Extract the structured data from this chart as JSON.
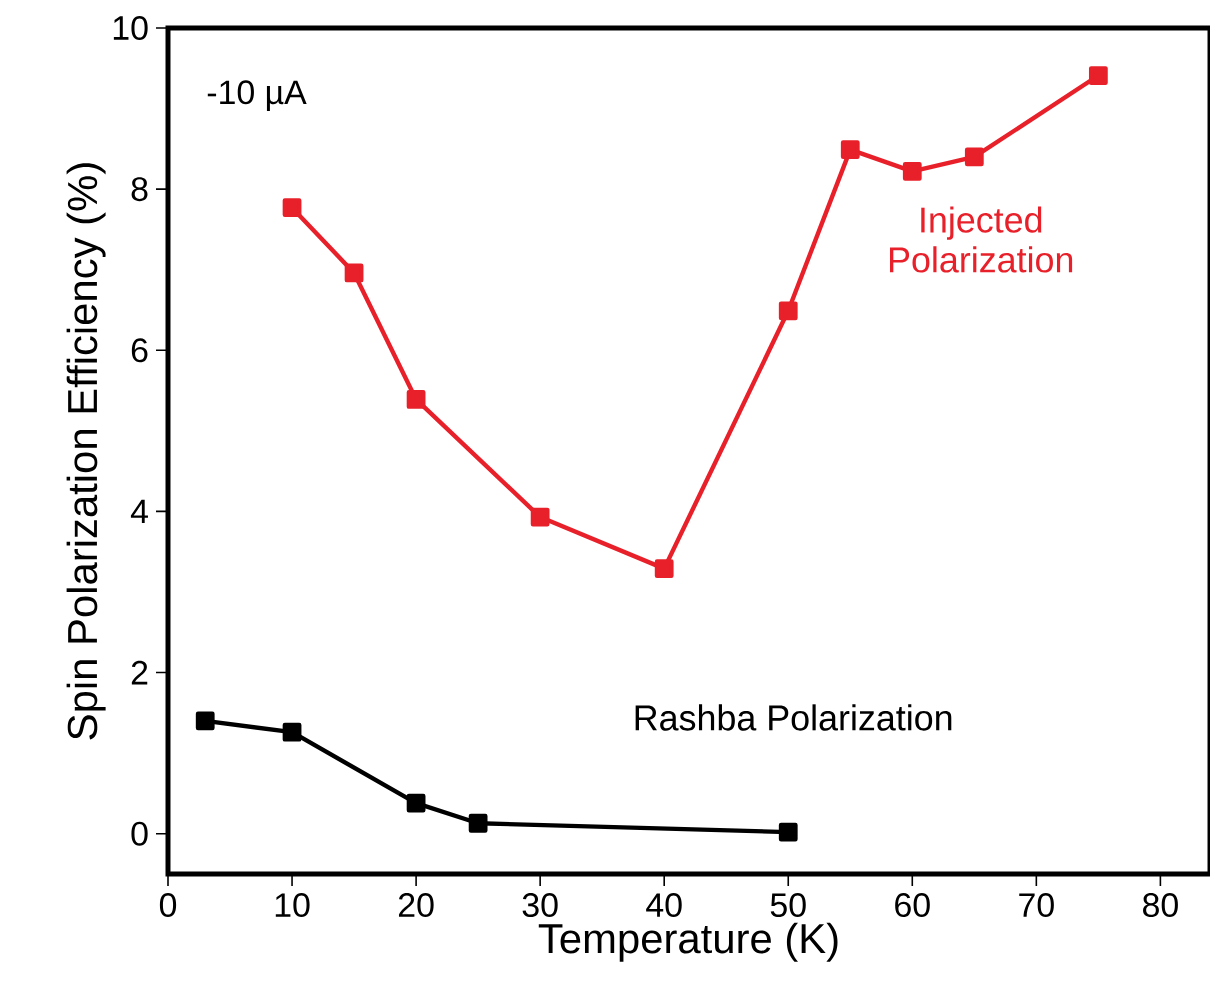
{
  "chart_data": {
    "type": "line",
    "xlabel": "Temperature (K)",
    "ylabel": "Spin Polarization Efficiency (%)",
    "xlim": [
      0,
      84
    ],
    "ylim": [
      -0.5,
      10
    ],
    "xticks": [
      0,
      10,
      20,
      30,
      40,
      50,
      60,
      70,
      80
    ],
    "yticks": [
      0,
      2,
      4,
      6,
      8,
      10
    ],
    "marker": "square",
    "legend": false,
    "grid": false,
    "annotations": [
      "-10 µA"
    ],
    "series": [
      {
        "name": "Injected Polarization",
        "color": "#e8202a",
        "x": [
          10,
          15,
          20,
          30,
          40,
          50,
          55,
          60,
          65,
          75
        ],
        "values": [
          7.77,
          6.96,
          5.39,
          3.93,
          3.29,
          6.49,
          8.49,
          8.22,
          8.4,
          9.41
        ]
      },
      {
        "name": "Rashba Polarization",
        "color": "#000000",
        "x": [
          3,
          10,
          20,
          25,
          50
        ],
        "values": [
          1.4,
          1.26,
          0.38,
          0.13,
          0.02
        ]
      }
    ]
  }
}
